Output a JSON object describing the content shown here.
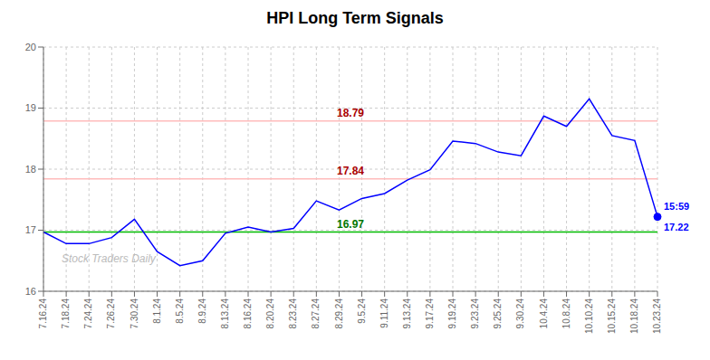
{
  "chart_data": {
    "type": "line",
    "title": "HPI Long Term Signals",
    "categories": [
      "7.16.24",
      "7.18.24",
      "7.24.24",
      "7.26.24",
      "7.30.24",
      "8.1.24",
      "8.5.24",
      "8.9.24",
      "8.13.24",
      "8.16.24",
      "8.20.24",
      "8.23.24",
      "8.27.24",
      "8.29.24",
      "9.5.24",
      "9.11.24",
      "9.13.24",
      "9.17.24",
      "9.19.24",
      "9.23.24",
      "9.25.24",
      "9.30.24",
      "10.4.24",
      "10.8.24",
      "10.10.24",
      "10.15.24",
      "10.18.24",
      "10.23.24"
    ],
    "values": [
      16.97,
      16.78,
      16.78,
      16.88,
      17.18,
      16.65,
      16.42,
      16.5,
      16.95,
      17.05,
      16.97,
      17.03,
      17.48,
      17.33,
      17.52,
      17.6,
      17.82,
      17.99,
      18.46,
      18.42,
      18.28,
      18.22,
      18.87,
      18.7,
      19.15,
      18.55,
      18.47,
      17.22
    ],
    "color": "blue",
    "ylim": [
      16,
      20
    ],
    "yticks": [
      16,
      17,
      18,
      19,
      20
    ],
    "grid": true,
    "reference_lines": [
      {
        "y": 18.79,
        "color": "#ffbbbb",
        "label": "18.79",
        "label_color": "#aa0000"
      },
      {
        "y": 17.84,
        "color": "#ffbbbb",
        "label": "17.84",
        "label_color": "#aa0000"
      },
      {
        "y": 16.97,
        "color": "#00bb00",
        "label": "16.97",
        "label_color": "#007700"
      }
    ],
    "last_point_labels": [
      "15:59",
      "17.22"
    ],
    "watermark": {
      "text": "Stock Traders Daily",
      "color": "#bbbbbb"
    }
  }
}
